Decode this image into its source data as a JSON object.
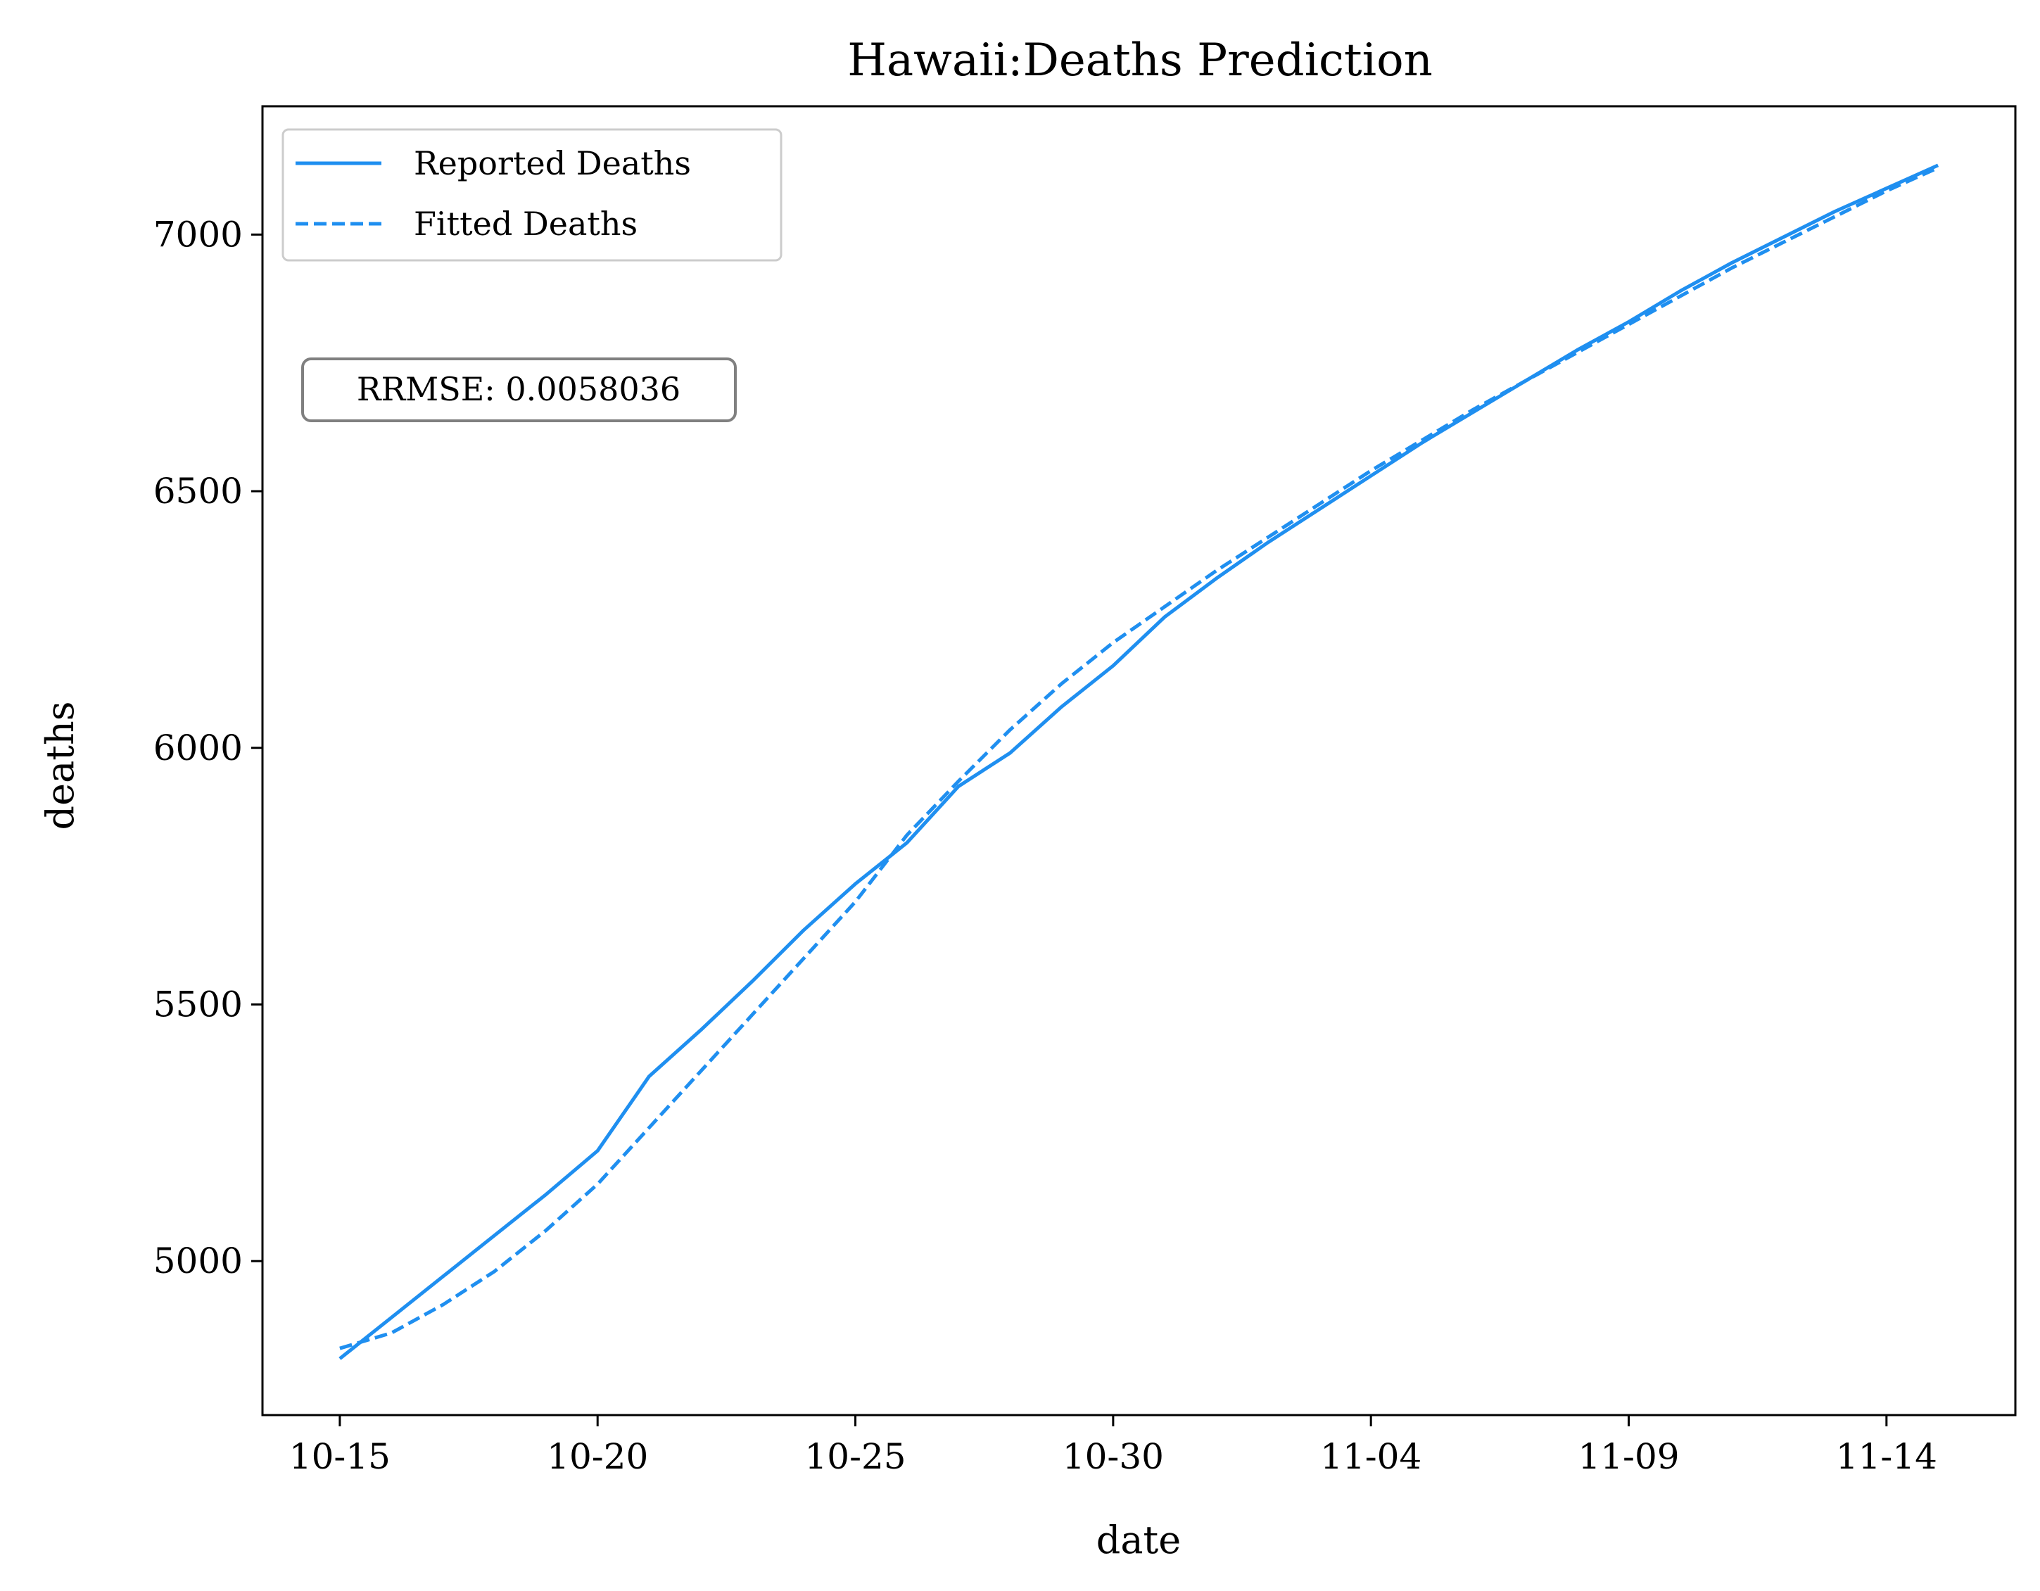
{
  "chart_data": {
    "type": "line",
    "title": "Hawaii:Deaths Prediction",
    "xlabel": "date",
    "ylabel": "deaths",
    "x_tick_labels": [
      "10-15",
      "10-20",
      "10-25",
      "10-30",
      "11-04",
      "11-09",
      "11-14"
    ],
    "x_tick_positions": [
      0,
      5,
      10,
      15,
      20,
      25,
      30
    ],
    "y_ticks": [
      5000,
      5500,
      6000,
      6500,
      7000
    ],
    "xlim": [
      -1.5,
      32.5
    ],
    "ylim": [
      4700,
      7250
    ],
    "grid": false,
    "legend_position": "top-left",
    "annotation": "RRMSE: 0.0058036",
    "x": [
      0,
      1,
      2,
      3,
      4,
      5,
      6,
      7,
      8,
      9,
      10,
      11,
      12,
      13,
      14,
      15,
      16,
      17,
      18,
      19,
      20,
      21,
      22,
      23,
      24,
      25,
      26,
      27,
      28,
      29,
      30,
      31
    ],
    "series": [
      {
        "name": "Reported Deaths",
        "style": "solid",
        "color": "#1f8ff0",
        "values": [
          4810,
          4890,
          4970,
          5050,
          5130,
          5215,
          5360,
          5450,
          5545,
          5645,
          5735,
          5815,
          5925,
          5990,
          6080,
          6160,
          6255,
          6330,
          6400,
          6465,
          6530,
          6595,
          6655,
          6715,
          6775,
          6830,
          6890,
          6945,
          6995,
          7045,
          7090,
          7135
        ]
      },
      {
        "name": "Fitted Deaths",
        "style": "dashed",
        "color": "#1f8ff0",
        "values": [
          4830,
          4860,
          4915,
          4980,
          5060,
          5150,
          5260,
          5370,
          5480,
          5590,
          5700,
          5830,
          5935,
          6035,
          6125,
          6205,
          6275,
          6345,
          6410,
          6475,
          6540,
          6600,
          6660,
          6715,
          6770,
          6825,
          6880,
          6935,
          6985,
          7035,
          7085,
          7130
        ]
      }
    ]
  }
}
